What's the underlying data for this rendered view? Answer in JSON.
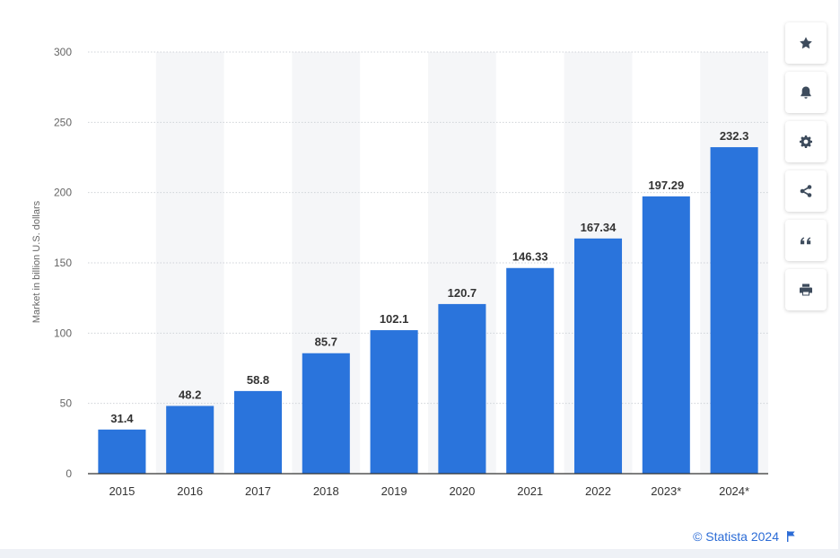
{
  "chart_data": {
    "type": "bar",
    "categories": [
      "2015",
      "2016",
      "2017",
      "2018",
      "2019",
      "2020",
      "2021",
      "2022",
      "2023*",
      "2024*"
    ],
    "values": [
      31.4,
      48.2,
      58.8,
      85.7,
      102.1,
      120.7,
      146.33,
      167.34,
      197.29,
      232.3
    ],
    "value_labels": [
      "31.4",
      "48.2",
      "58.8",
      "85.7",
      "102.1",
      "120.7",
      "146.33",
      "167.34",
      "197.29",
      "232.3"
    ],
    "title": "",
    "xlabel": "",
    "ylabel": "Market in billion U.S. dollars",
    "ylim": [
      0,
      300
    ],
    "yticks": [
      0,
      50,
      100,
      150,
      200,
      250,
      300
    ],
    "grid": true,
    "bar_color": "#2a74dc",
    "alt_column_shading": "#f5f6f8"
  },
  "toolbar": {
    "buttons": [
      {
        "icon": "star-icon"
      },
      {
        "icon": "bell-icon"
      },
      {
        "icon": "gear-icon"
      },
      {
        "icon": "share-icon"
      },
      {
        "icon": "quote-icon"
      },
      {
        "icon": "print-icon"
      }
    ]
  },
  "credit": {
    "text": "© Statista 2024",
    "icon": "flag-icon"
  }
}
